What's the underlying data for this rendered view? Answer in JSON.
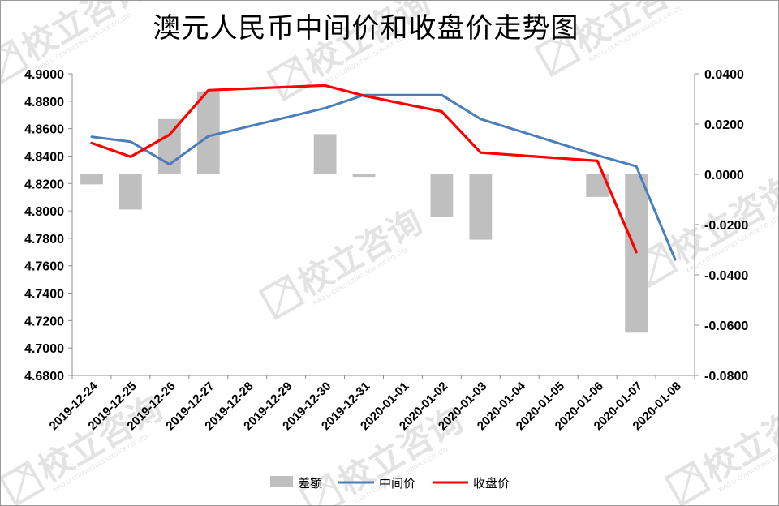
{
  "chart_data": {
    "type": "bar+line",
    "title": "澳元人民币中间价和收盘价走势图",
    "categories": [
      "2019-12-24",
      "2019-12-25",
      "2019-12-26",
      "2019-12-27",
      "2019-12-28",
      "2019-12-29",
      "2019-12-30",
      "2019-12-31",
      "2020-01-01",
      "2020-01-02",
      "2020-01-03",
      "2020-01-04",
      "2020-01-05",
      "2020-01-06",
      "2020-01-07",
      "2020-01-08"
    ],
    "left_axis": {
      "min": 4.68,
      "max": 4.9,
      "step": 0.02,
      "ticks": [
        "4.9000",
        "4.8800",
        "4.8600",
        "4.8400",
        "4.8200",
        "4.8000",
        "4.7800",
        "4.7600",
        "4.7400",
        "4.7200",
        "4.7000",
        "4.6800"
      ]
    },
    "right_axis": {
      "min": -0.08,
      "max": 0.04,
      "step": 0.02,
      "ticks": [
        "0.0400",
        "0.0200",
        "0.0000",
        "-0.0200",
        "-0.0400",
        "-0.0600",
        "-0.0800"
      ]
    },
    "series": [
      {
        "name": "差额",
        "type": "bar",
        "axis": "right",
        "color": "#bfbfbf",
        "values": [
          -0.004,
          -0.014,
          0.022,
          0.033,
          null,
          null,
          0.016,
          -0.001,
          null,
          -0.017,
          -0.026,
          null,
          null,
          -0.009,
          -0.063,
          null
        ]
      },
      {
        "name": "中间价",
        "type": "line",
        "axis": "left",
        "color": "#4a7ebb",
        "values": [
          4.854,
          4.8505,
          4.834,
          4.8545,
          null,
          null,
          4.875,
          4.8845,
          null,
          4.8845,
          4.867,
          null,
          null,
          4.8405,
          4.8325,
          4.7645
        ]
      },
      {
        "name": "收盘价",
        "type": "line",
        "axis": "left",
        "color": "#ff0000",
        "values": [
          4.8495,
          4.8395,
          4.8555,
          4.888,
          null,
          null,
          4.8915,
          4.884,
          null,
          4.8725,
          4.8425,
          null,
          null,
          4.8365,
          4.77,
          null
        ]
      }
    ],
    "grid": false,
    "legend_position": "bottom"
  },
  "watermark": {
    "text": "校立咨询",
    "subtext": "XIAO LI CONSULTING SERVICE CO.,LTD",
    "color": "#e3e3e3"
  }
}
